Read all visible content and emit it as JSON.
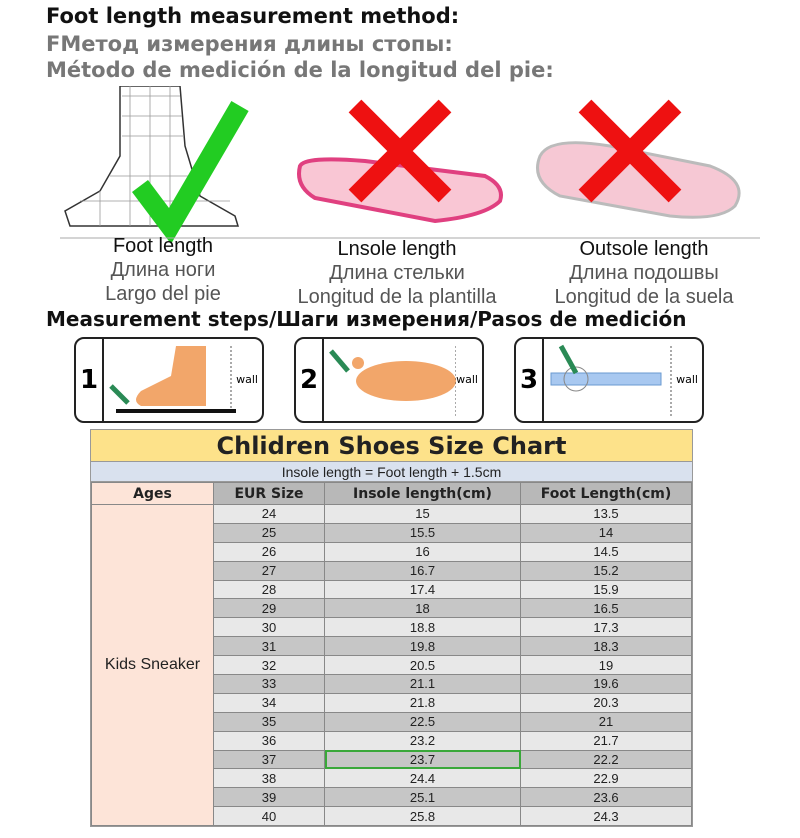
{
  "headings": {
    "en": "Foot length measurement method:",
    "ru": "FМетод измерения длины стопы:",
    "es": "Método de medición de la longitud del pie:"
  },
  "methods": [
    {
      "en": "Foot length",
      "ru": "Длина ноги",
      "es": "Largo del pie",
      "mark": "check",
      "color": "#22cc22"
    },
    {
      "en": "Lnsole length",
      "ru": "Длина стельки",
      "es": "Longitud de la plantilla",
      "mark": "cross",
      "color": "#ee1111"
    },
    {
      "en": "Outsole length",
      "ru": "Длина подошвы",
      "es": "Longitud de la suela",
      "mark": "cross",
      "color": "#ee1111"
    }
  ],
  "steps_heading": "Measurement steps/Шаги измерения/Pasos de medición",
  "steps": [
    {
      "num": "1",
      "wall": "wall"
    },
    {
      "num": "2",
      "wall": "wall"
    },
    {
      "num": "3",
      "wall": "wall"
    }
  ],
  "chart": {
    "title": "Chlidren Shoes Size Chart",
    "subtitle": "Insole length = Foot length + 1.5cm",
    "headers": [
      "Ages",
      "EUR Size",
      "Insole length(cm)",
      "Foot Length(cm)"
    ],
    "age_group": "Kids Sneaker",
    "rows": [
      [
        "24",
        "15",
        "13.5"
      ],
      [
        "25",
        "15.5",
        "14"
      ],
      [
        "26",
        "16",
        "14.5"
      ],
      [
        "27",
        "16.7",
        "15.2"
      ],
      [
        "28",
        "17.4",
        "15.9"
      ],
      [
        "29",
        "18",
        "16.5"
      ],
      [
        "30",
        "18.8",
        "17.3"
      ],
      [
        "31",
        "19.8",
        "18.3"
      ],
      [
        "32",
        "20.5",
        "19"
      ],
      [
        "33",
        "21.1",
        "19.6"
      ],
      [
        "34",
        "21.8",
        "20.3"
      ],
      [
        "35",
        "22.5",
        "21"
      ],
      [
        "36",
        "23.2",
        "21.7"
      ],
      [
        "37",
        "23.7",
        "22.2"
      ],
      [
        "38",
        "24.4",
        "22.9"
      ],
      [
        "39",
        "25.1",
        "23.6"
      ],
      [
        "40",
        "25.8",
        "24.3"
      ]
    ]
  }
}
